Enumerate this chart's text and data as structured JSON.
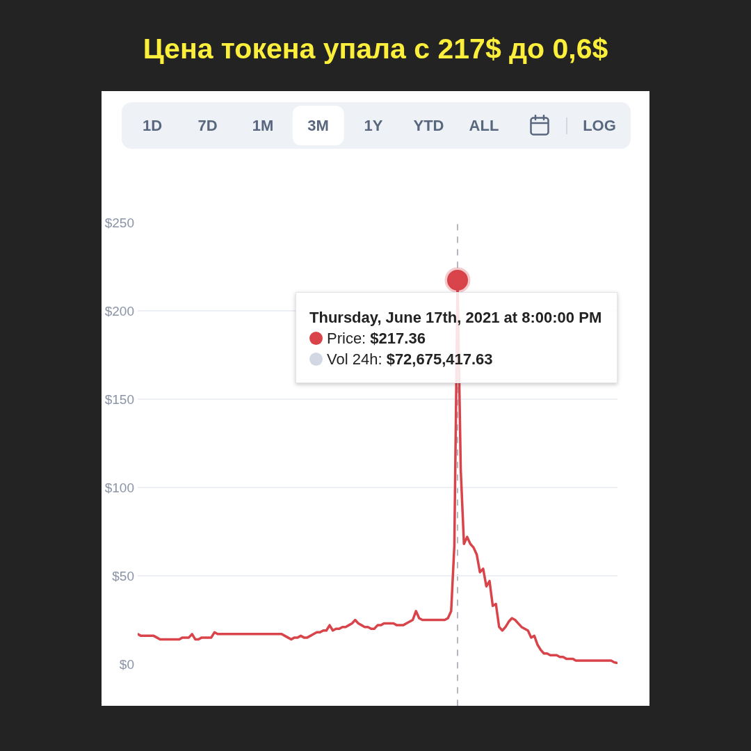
{
  "chart_data": {
    "type": "line",
    "title": "Цена токена упала с 217$ до 0,6$",
    "categories": [
      null,
      null,
      null,
      null,
      null,
      null,
      null,
      null,
      null,
      null,
      null,
      null,
      null,
      null,
      null,
      null,
      null,
      null,
      null,
      null,
      null,
      null,
      null,
      null,
      null,
      null,
      null,
      null,
      null,
      null,
      null,
      null,
      null,
      null,
      null,
      null,
      null,
      null,
      null,
      null,
      null,
      null,
      null,
      null,
      null,
      null,
      null,
      null,
      null,
      null,
      null,
      null,
      null,
      null,
      null,
      null,
      null,
      null,
      null,
      null,
      null,
      null,
      null,
      null,
      null,
      null,
      null,
      null,
      null,
      null,
      null,
      null,
      null,
      null,
      null,
      null,
      null,
      null,
      null,
      null,
      null,
      null,
      null,
      null,
      null,
      null,
      null,
      null,
      null,
      null,
      null,
      null,
      null,
      null,
      null,
      null,
      null,
      null,
      null,
      null,
      null,
      null,
      null,
      null,
      null,
      null,
      null,
      null,
      null,
      null,
      null,
      null,
      null,
      null,
      null,
      null,
      null,
      null,
      null,
      null,
      null,
      null,
      null,
      null,
      null,
      null,
      null,
      null,
      null,
      null,
      null,
      null,
      null,
      null,
      null,
      null,
      null,
      null,
      null,
      null,
      null,
      null,
      null,
      null,
      null,
      null,
      null,
      null,
      null,
      null,
      null
    ],
    "series": [
      {
        "color": "#d9434a",
        "values": [
          17,
          16,
          16,
          16,
          16,
          16,
          15,
          14,
          14,
          14,
          14,
          14,
          14,
          14,
          15,
          15,
          15,
          17,
          14,
          14,
          15,
          15,
          15,
          15,
          18,
          17,
          17,
          17,
          17,
          17,
          17,
          17,
          17,
          17,
          17,
          17,
          17,
          17,
          17,
          17,
          17,
          17,
          17,
          17,
          17,
          17,
          16,
          15,
          14,
          15,
          15,
          16,
          15,
          15,
          16,
          17,
          18,
          18,
          19,
          19,
          22,
          19,
          20,
          20,
          21,
          21,
          22,
          23,
          25,
          23,
          22,
          21,
          21,
          20,
          20,
          22,
          22,
          23,
          23,
          23,
          23,
          22,
          22,
          22,
          23,
          24,
          25,
          30,
          26,
          25,
          25,
          25,
          25,
          25,
          25,
          25,
          25,
          26,
          30,
          67,
          217.36,
          110,
          68,
          72,
          68,
          66,
          62,
          52,
          54,
          44,
          47,
          33,
          34,
          21,
          19,
          21,
          24,
          26,
          25,
          23,
          21,
          20,
          19,
          15,
          16,
          11,
          8,
          6,
          6,
          5,
          5,
          5,
          4,
          4,
          3,
          3,
          3,
          2,
          2,
          2,
          2,
          2,
          2,
          2,
          2,
          2,
          2,
          2,
          2,
          1,
          0.6
        ]
      },
      {
        "type": "scatter",
        "color": "#d9434a",
        "values": [
          null,
          null,
          null,
          null,
          null,
          null,
          null,
          null,
          null,
          null,
          null,
          null,
          null,
          null,
          null,
          null,
          null,
          null,
          null,
          null,
          null,
          null,
          null,
          null,
          null,
          null,
          null,
          null,
          null,
          null,
          null,
          null,
          null,
          null,
          null,
          null,
          null,
          null,
          null,
          null,
          null,
          null,
          null,
          null,
          null,
          null,
          null,
          null,
          null,
          null,
          null,
          null,
          null,
          null,
          null,
          null,
          null,
          null,
          null,
          null,
          null,
          null,
          null,
          null,
          null,
          null,
          null,
          null,
          null,
          null,
          null,
          null,
          null,
          null,
          null,
          null,
          null,
          null,
          null,
          null,
          null,
          null,
          null,
          null,
          null,
          null,
          null,
          null,
          null,
          null,
          null,
          null,
          null,
          null,
          null,
          null,
          null,
          null,
          null,
          null,
          217.36,
          null,
          null,
          null,
          null,
          null,
          null,
          null,
          null,
          null,
          null,
          null,
          null,
          null,
          null,
          null,
          null,
          null,
          null,
          null,
          null,
          null,
          null,
          null,
          null,
          null,
          null,
          null,
          null,
          null,
          null,
          null,
          null,
          null,
          null,
          null,
          null,
          null,
          null,
          null,
          null,
          null,
          null,
          null,
          null,
          null,
          null,
          null,
          null,
          null,
          null
        ]
      }
    ],
    "ylim": [
      0,
      250
    ],
    "yticks": [
      {
        "value": 0,
        "label": "$0"
      },
      {
        "value": 50,
        "label": "$50"
      },
      {
        "value": 100,
        "label": "$100"
      },
      {
        "value": 150,
        "label": "$150"
      },
      {
        "value": 200,
        "label": "$200"
      },
      {
        "value": 250,
        "label": "$250"
      }
    ],
    "grid": "y",
    "tick_labels": "y",
    "annotations": [
      "1D",
      "7D",
      "1M",
      "3M",
      "1Y",
      "YTD",
      "ALL",
      "LOG",
      {
        "text": "Thursday, June 17th, 2021 at 8:00:00 PM\nPrice: $217.36\nVol 24h: $72,675,417.63",
        "y": 217.36
      }
    ]
  }
}
